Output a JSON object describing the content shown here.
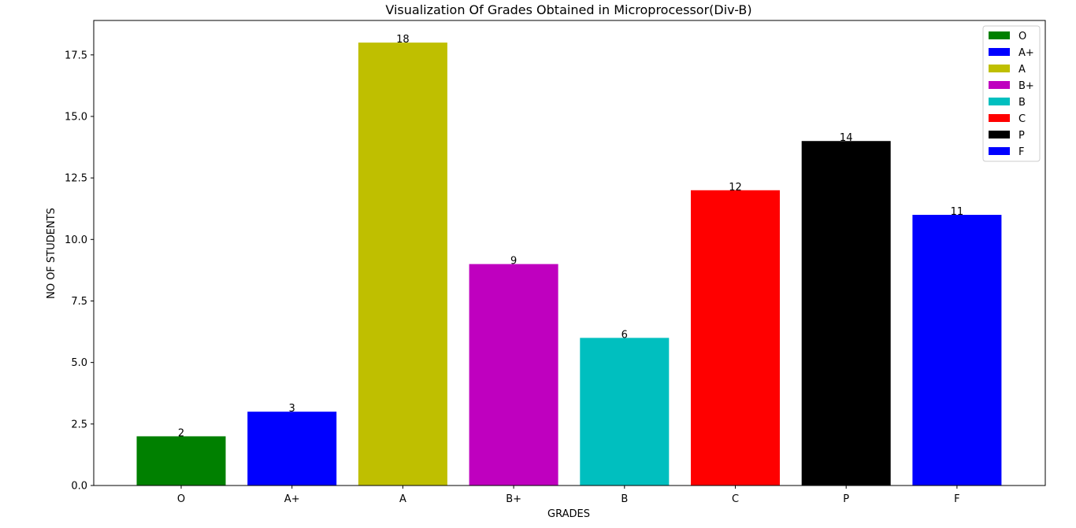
{
  "chart_data": {
    "type": "bar",
    "title": "Visualization Of Grades Obtained in Microprocessor(Div-B)",
    "xlabel": "GRADES",
    "ylabel": "NO OF STUDENTS",
    "categories": [
      "O",
      "A+",
      "A",
      "B+",
      "B",
      "C",
      "P",
      "F"
    ],
    "values": [
      2,
      3,
      18,
      9,
      6,
      12,
      14,
      11
    ],
    "colors": [
      "#008000",
      "#0000ff",
      "#bfbf00",
      "#bf00bf",
      "#00bfbf",
      "#ff0000",
      "#000000",
      "#0000ff"
    ],
    "data_labels": [
      "2",
      "3",
      "18",
      "9",
      "6",
      "12",
      "14",
      "11"
    ],
    "yticks": [
      0.0,
      2.5,
      5.0,
      7.5,
      10.0,
      12.5,
      15.0,
      17.5
    ],
    "ytick_labels": [
      "0.0",
      "2.5",
      "5.0",
      "7.5",
      "10.0",
      "12.5",
      "15.0",
      "17.5"
    ],
    "ylim": [
      0,
      18.9
    ],
    "grid": false,
    "legend": {
      "placement": "top-right",
      "entries": [
        "O",
        "A+",
        "A",
        "B+",
        "B",
        "C",
        "P",
        "F"
      ]
    }
  }
}
